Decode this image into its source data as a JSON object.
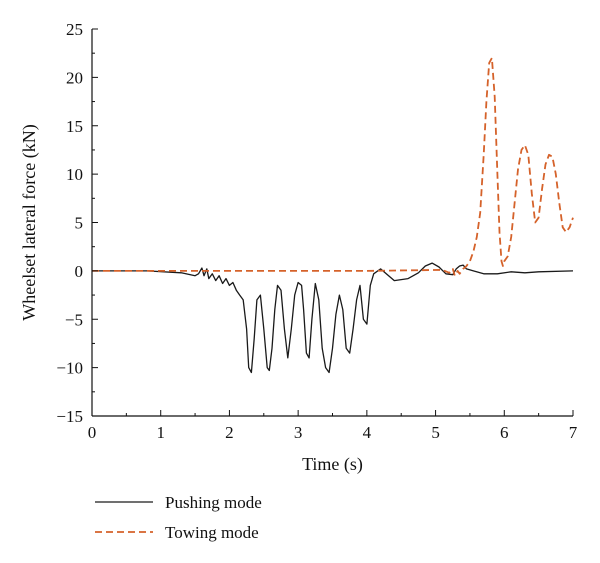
{
  "chart_data": {
    "type": "line",
    "title": "",
    "xlabel": "Time (s)",
    "ylabel": "Wheelset lateral force (kN)",
    "xlim": [
      0,
      7
    ],
    "ylim": [
      -15,
      25
    ],
    "x_ticks": [
      "0",
      "1",
      "2",
      "3",
      "4",
      "5",
      "6",
      "7"
    ],
    "y_ticks": [
      "-15",
      "-10",
      "-5",
      "0",
      "5",
      "10",
      "15",
      "20",
      "25"
    ],
    "grid": false,
    "legend": {
      "placement": "below"
    },
    "series": [
      {
        "name": "Pushing mode",
        "color": "#1a1a1a",
        "dash": "solid",
        "x": [
          0,
          0.8,
          1.3,
          1.5,
          1.55,
          1.6,
          1.63,
          1.67,
          1.7,
          1.75,
          1.8,
          1.85,
          1.9,
          1.95,
          2.0,
          2.05,
          2.1,
          2.15,
          2.2,
          2.25,
          2.28,
          2.32,
          2.36,
          2.4,
          2.45,
          2.5,
          2.55,
          2.58,
          2.62,
          2.66,
          2.7,
          2.75,
          2.8,
          2.85,
          2.9,
          2.95,
          3.0,
          3.05,
          3.08,
          3.12,
          3.16,
          3.2,
          3.25,
          3.3,
          3.35,
          3.4,
          3.45,
          3.5,
          3.55,
          3.6,
          3.65,
          3.7,
          3.75,
          3.8,
          3.85,
          3.9,
          3.95,
          4.0,
          4.05,
          4.1,
          4.2,
          4.4,
          4.6,
          4.75,
          4.85,
          4.95,
          5.05,
          5.15,
          5.25,
          5.3,
          5.35,
          5.4,
          5.45,
          5.55,
          5.7,
          5.9,
          6.1,
          6.3,
          6.5,
          7.0
        ],
        "y": [
          0,
          0,
          -0.2,
          -0.5,
          -0.3,
          0.3,
          -0.5,
          0.2,
          -0.8,
          -0.3,
          -1.0,
          -0.5,
          -1.3,
          -0.8,
          -1.5,
          -1.2,
          -2.0,
          -2.5,
          -3.0,
          -6.0,
          -10.0,
          -10.5,
          -7.0,
          -3.0,
          -2.5,
          -6.0,
          -10.0,
          -10.3,
          -8.0,
          -4.0,
          -1.5,
          -2.0,
          -6.0,
          -9.0,
          -6.0,
          -2.5,
          -1.2,
          -1.5,
          -4.0,
          -8.5,
          -9.0,
          -5.0,
          -1.3,
          -3.0,
          -8.0,
          -10.0,
          -10.5,
          -8.0,
          -4.5,
          -2.5,
          -4.0,
          -8.0,
          -8.5,
          -6.0,
          -3.0,
          -1.5,
          -5.0,
          -5.5,
          -1.5,
          -0.3,
          0.2,
          -1.0,
          -0.8,
          -0.2,
          0.5,
          0.8,
          0.4,
          -0.3,
          -0.4,
          0.2,
          0.5,
          0.6,
          0.2,
          0.0,
          -0.3,
          -0.3,
          -0.1,
          -0.2,
          -0.1,
          0.0
        ]
      },
      {
        "name": "Towing mode",
        "color": "#d5622a",
        "dash": "dashed",
        "x": [
          0,
          2,
          4,
          5.1,
          5.2,
          5.25,
          5.28,
          5.32,
          5.35,
          5.4,
          5.45,
          5.5,
          5.55,
          5.6,
          5.65,
          5.7,
          5.74,
          5.78,
          5.82,
          5.86,
          5.9,
          5.93,
          5.96,
          5.98,
          6.0,
          6.05,
          6.1,
          6.15,
          6.2,
          6.25,
          6.3,
          6.35,
          6.4,
          6.45,
          6.5,
          6.55,
          6.6,
          6.65,
          6.7,
          6.75,
          6.8,
          6.85,
          6.9,
          6.95,
          7.0
        ],
        "y": [
          0,
          0,
          0,
          0.1,
          -0.2,
          0.2,
          -0.5,
          0.0,
          -0.3,
          0.2,
          0.5,
          1.0,
          2.0,
          3.5,
          6.0,
          12.0,
          17.5,
          21.5,
          22.0,
          18.0,
          10.0,
          4.0,
          1.0,
          0.5,
          1.0,
          1.5,
          3.5,
          7.0,
          10.5,
          12.5,
          13.0,
          12.0,
          8.0,
          5.0,
          5.5,
          8.5,
          11.0,
          12.0,
          11.8,
          10.0,
          7.0,
          4.5,
          4.0,
          4.5,
          5.5
        ]
      }
    ]
  }
}
